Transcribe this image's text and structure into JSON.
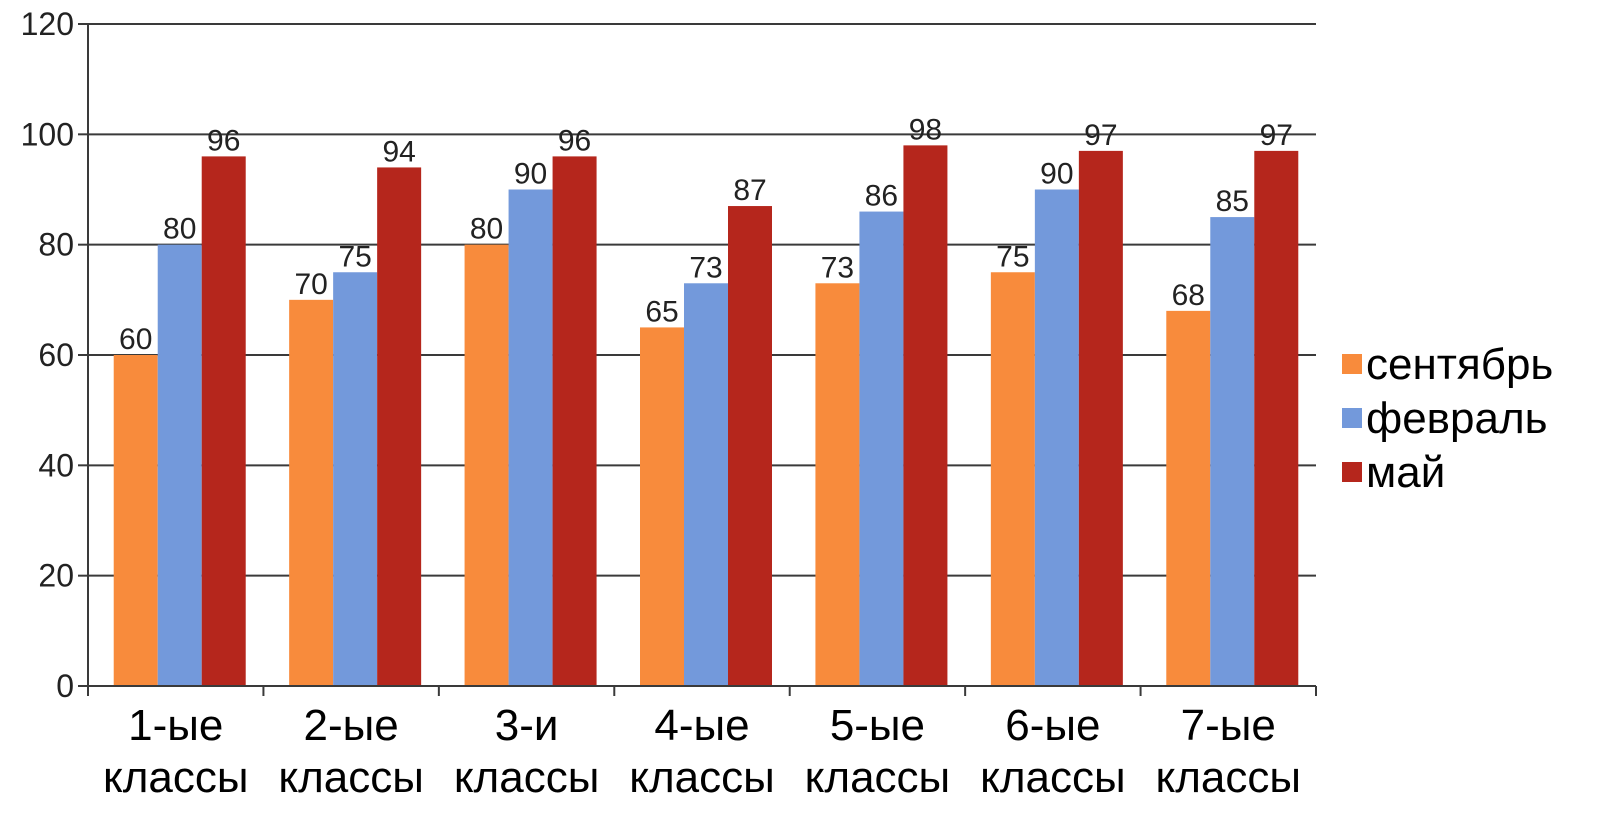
{
  "chart_data": {
    "type": "bar",
    "categories": [
      [
        "1-ые",
        "классы"
      ],
      [
        "2-ые",
        "классы"
      ],
      [
        "3-и",
        "классы"
      ],
      [
        "4-ые",
        "классы"
      ],
      [
        "5-ые",
        "классы"
      ],
      [
        "6-ые",
        "классы"
      ],
      [
        "7-ые",
        "классы"
      ]
    ],
    "series": [
      {
        "name": "сентябрь",
        "color": "#f88b3c",
        "values": [
          60,
          70,
          80,
          65,
          73,
          75,
          68
        ]
      },
      {
        "name": "февраль",
        "color": "#7399db",
        "values": [
          80,
          75,
          90,
          73,
          86,
          90,
          85
        ]
      },
      {
        "name": "май",
        "color": "#b5261c",
        "values": [
          96,
          94,
          96,
          87,
          98,
          97,
          97
        ]
      }
    ],
    "yticks": [
      0,
      20,
      40,
      60,
      80,
      100,
      120
    ],
    "ylim": [
      0,
      120
    ],
    "title": "",
    "xlabel": "",
    "ylabel": "",
    "grid": true,
    "data_labels": true,
    "legend_position": "right"
  }
}
